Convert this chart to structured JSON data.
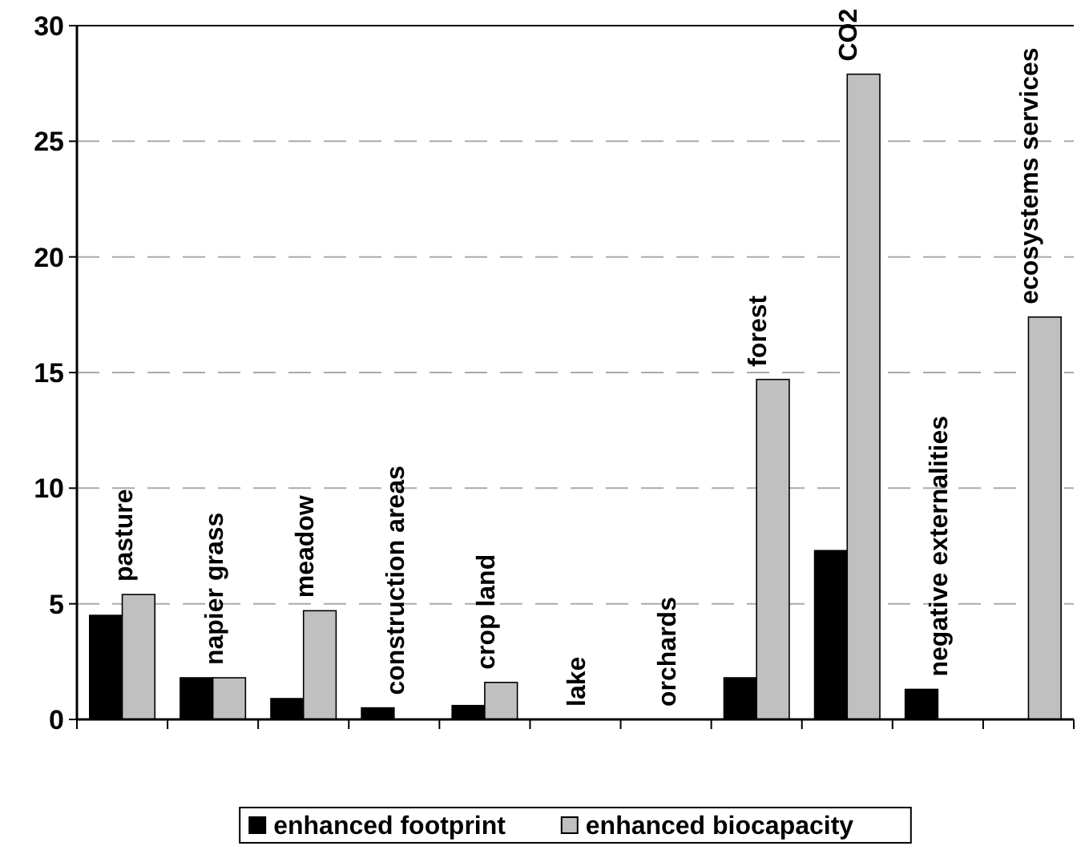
{
  "chart_data": {
    "type": "bar",
    "categories": [
      "pasture",
      "napier grass",
      "meadow",
      "construction areas",
      "crop land",
      "lake",
      "orchards",
      "forest",
      "CO2",
      "negative externalities",
      "ecosystems services"
    ],
    "series": [
      {
        "name": "enhanced footprint",
        "color": "#000000",
        "values": [
          4.5,
          1.8,
          0.9,
          0.5,
          0.6,
          null,
          null,
          1.8,
          7.3,
          1.3,
          null
        ]
      },
      {
        "name": "enhanced biocapacity",
        "color": "#c0c0c0",
        "values": [
          5.4,
          1.8,
          4.7,
          null,
          1.6,
          null,
          null,
          14.7,
          27.9,
          null,
          17.4
        ]
      }
    ],
    "ylim": [
      0,
      30
    ],
    "yticks": [
      0,
      5,
      10,
      15,
      20,
      25,
      30
    ],
    "grid": "y",
    "legend": "bottom"
  }
}
